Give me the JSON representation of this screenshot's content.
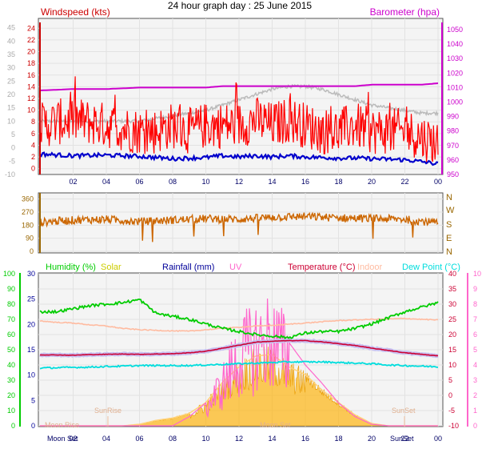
{
  "title": "24 hour graph day : 25 June 2015",
  "colors": {
    "wind": "#ff0000",
    "wind_avg": "#0000cc",
    "wind_axis": "#cc0000",
    "baro": "#cc00cc",
    "temp_old": "#bbbbbb",
    "dir": "#cc6600",
    "dir_axis": "#996600",
    "humidity": "#00cc00",
    "solar": "#ffb000",
    "rainfall": "#000099",
    "uv": "#ff66cc",
    "temperature": "#cc0033",
    "indoor": "#ffbba0",
    "dewpoint": "#00dddd",
    "x_tick": "#000066",
    "plot_bg": "#f4f4f4",
    "grid": "#e2e2e2"
  },
  "x_ticks": [
    "02",
    "04",
    "06",
    "08",
    "10",
    "12",
    "14",
    "16",
    "18",
    "20",
    "22",
    "00"
  ],
  "top_panel": {
    "left_label": "Windspeed (kts)",
    "right_label": "Barometer (hpa)",
    "left_ticks": [
      "24",
      "22",
      "20",
      "18",
      "16",
      "14",
      "12",
      "10",
      "8",
      "6",
      "4",
      "2",
      "0"
    ],
    "grey_ticks": [
      "45",
      "40",
      "35",
      "30",
      "25",
      "20",
      "15",
      "10",
      "5",
      "0",
      "-5",
      "-10"
    ],
    "right_ticks": [
      "1050",
      "1040",
      "1030",
      "1020",
      "1010",
      "1000",
      "990",
      "980",
      "970",
      "960",
      "950"
    ]
  },
  "dir_panel": {
    "left_ticks": [
      "360",
      "270",
      "180",
      "90",
      "0"
    ],
    "right_ticks": [
      "N",
      "W",
      "S",
      "E",
      "N"
    ]
  },
  "bottom_panel": {
    "legend": {
      "humidity": "Humidity (%)",
      "solar": "Solar",
      "rainfall": "Rainfall (mm)",
      "uv": "UV",
      "temperature": "Temperature (°C)",
      "indoor": "Indoor",
      "dewpoint": "Dew Point (°C)"
    },
    "hum_ticks": [
      "100",
      "90",
      "80",
      "70",
      "60",
      "50",
      "40",
      "30",
      "20",
      "10",
      "0"
    ],
    "rain_ticks": [
      "30",
      "25",
      "20",
      "15",
      "10",
      "5",
      "0"
    ],
    "temp_ticks": [
      "40",
      "35",
      "30",
      "25",
      "20",
      "15",
      "10",
      "5",
      "0",
      "-5",
      "-10"
    ],
    "uv_ticks": [
      "10",
      "9",
      "8",
      "7",
      "6",
      "5",
      "4",
      "3",
      "2",
      "1",
      "0"
    ],
    "annotations": {
      "sunrise": "SunRise",
      "sunset": "SunSet",
      "moonrise": "Moon Rise",
      "moonset": "Moon Set",
      "moonset_axis": "Moon Set",
      "sunset_axis": "SunSet"
    }
  },
  "chart_data": [
    {
      "type": "line",
      "title": "24 hour graph day : 25 June 2015",
      "x_hours": [
        0,
        2,
        4,
        6,
        7,
        8,
        9,
        10,
        11,
        12,
        13,
        14,
        15,
        16,
        17,
        18,
        19,
        20,
        21,
        22,
        23,
        24
      ],
      "series": [
        {
          "name": "Windspeed (kts)",
          "axis": "left",
          "ylim": [
            -1,
            25
          ],
          "values": [
            7,
            8,
            7,
            6,
            6,
            7,
            6,
            7,
            7,
            7,
            8,
            7,
            8,
            7,
            6,
            6,
            7,
            6,
            6,
            6,
            5,
            4
          ]
        },
        {
          "name": "Barometer (hpa)",
          "axis": "right",
          "ylim": [
            950,
            1055
          ],
          "values": [
            1008,
            1009,
            1009,
            1010,
            1010,
            1010,
            1010,
            1010,
            1011,
            1011,
            1011,
            1011,
            1011,
            1011,
            1011,
            1011,
            1011,
            1012,
            1012,
            1012,
            1012,
            1013
          ]
        },
        {
          "name": "",
          "axis": "grey",
          "ylim": [
            -10,
            47
          ],
          "values": [
            10,
            10,
            10,
            10,
            11,
            12,
            13,
            14,
            16,
            18,
            20,
            22,
            23,
            23,
            22,
            20,
            18,
            16,
            15,
            14,
            13,
            13
          ]
        }
      ],
      "avg_wind": [
        2.5,
        2.2,
        2.3,
        2.1,
        1.9,
        1.7,
        1.8,
        1.9,
        2.2,
        2.0,
        2.2,
        2.0,
        2.2,
        2.0,
        1.9,
        1.8,
        1.8,
        1.7,
        1.6,
        1.5,
        1.2,
        0.8
      ]
    },
    {
      "type": "line",
      "title": "",
      "ylabel": "",
      "y_ticks": [
        "360",
        "270",
        "180",
        "90",
        "0"
      ],
      "ylim": [
        0,
        380
      ],
      "x_hours": [
        0,
        2,
        4,
        6,
        8,
        10,
        12,
        14,
        16,
        18,
        20,
        22,
        24
      ],
      "series": [
        {
          "name": "",
          "values": [
            200,
            215,
            220,
            205,
            215,
            225,
            220,
            235,
            240,
            230,
            225,
            220,
            195
          ]
        }
      ]
    },
    {
      "type": "area",
      "title": "",
      "x_hours": [
        0,
        1,
        2,
        3,
        4,
        5,
        6,
        7,
        8,
        9,
        10,
        11,
        12,
        13,
        14,
        15,
        16,
        17,
        18,
        19,
        20,
        21,
        22,
        23,
        24
      ],
      "series": [
        {
          "name": "Humidity (%)",
          "axis": "hum",
          "ylim": [
            0,
            100
          ],
          "values": [
            75,
            75,
            77,
            79,
            80,
            81,
            83,
            74,
            72,
            70,
            67,
            64,
            62,
            60,
            59,
            58,
            61,
            62,
            62,
            64,
            67,
            71,
            75,
            78,
            81
          ]
        },
        {
          "name": "Solar",
          "axis": "solar",
          "ylim": [
            0,
            1000
          ],
          "values": [
            0,
            0,
            0,
            0,
            0,
            0,
            10,
            35,
            50,
            80,
            150,
            280,
            380,
            450,
            460,
            380,
            330,
            230,
            150,
            70,
            15,
            0,
            0,
            0,
            0
          ]
        },
        {
          "name": "UV",
          "axis": "uv",
          "ylim": [
            0,
            10
          ],
          "values": [
            0,
            0,
            0,
            0,
            0,
            0,
            0,
            0,
            0,
            0.6,
            1.5,
            3.2,
            5.5,
            6.5,
            7.0,
            5.5,
            4.0,
            2.8,
            1.5,
            0.6,
            0.1,
            0,
            0,
            0,
            0
          ]
        },
        {
          "name": "Temperature (°C)",
          "axis": "temp",
          "ylim": [
            -10,
            40
          ],
          "values": [
            13.3,
            13.3,
            13.2,
            13.4,
            13.5,
            13.6,
            13.5,
            13.6,
            13.7,
            14.0,
            14.5,
            15.5,
            16.5,
            17.5,
            17.8,
            18.0,
            18.0,
            17.6,
            17.0,
            16.4,
            15.5,
            14.8,
            14.0,
            13.5,
            13.0
          ]
        },
        {
          "name": "Indoor",
          "axis": "temp",
          "ylim": [
            -10,
            40
          ],
          "values": [
            24.5,
            24.0,
            23.8,
            23.2,
            22.8,
            22.0,
            21.6,
            21.4,
            21.2,
            21.1,
            21.6,
            22.0,
            22.4,
            22.8,
            23.0,
            23.4,
            23.8,
            24.2,
            24.6,
            24.8,
            25.0,
            25.1,
            25.3,
            25.0,
            24.8
          ]
        },
        {
          "name": "Dew Point (°C)",
          "axis": "temp",
          "ylim": [
            -10,
            40
          ],
          "values": [
            9.0,
            9.1,
            9.2,
            9.3,
            9.5,
            9.6,
            9.8,
            9.8,
            9.8,
            9.8,
            10.0,
            10.2,
            10.4,
            10.6,
            10.8,
            11.0,
            11.0,
            11.0,
            10.8,
            10.6,
            10.4,
            10.0,
            9.8,
            9.6,
            9.4
          ]
        },
        {
          "name": "Rainfall (mm)",
          "axis": "rain",
          "ylim": [
            0,
            30
          ],
          "values": [
            0,
            0,
            0,
            0,
            0,
            0,
            0,
            0,
            0,
            0,
            0,
            0,
            0,
            0,
            0,
            0,
            0,
            0,
            0,
            0,
            0,
            0,
            0,
            0,
            0
          ]
        }
      ]
    }
  ]
}
